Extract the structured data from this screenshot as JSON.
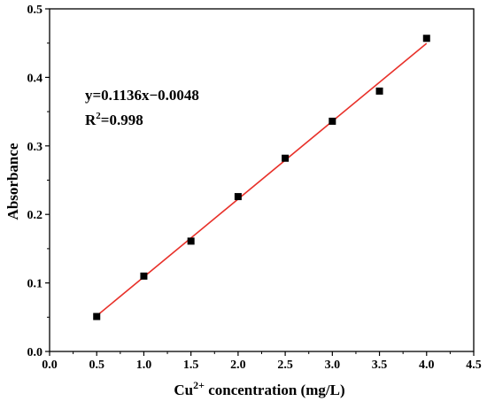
{
  "chart_data": {
    "type": "scatter",
    "xlabel": {
      "base": "Cu",
      "sup": "2+",
      "rest": " concentration (mg/L)"
    },
    "ylabel": "Absorbance",
    "xlim": [
      0.0,
      4.5
    ],
    "ylim": [
      0.0,
      0.5
    ],
    "xticks": [
      "0.0",
      "0.5",
      "1.0",
      "1.5",
      "2.0",
      "2.5",
      "3.0",
      "3.5",
      "4.0",
      "4.5"
    ],
    "yticks": [
      "0.0",
      "0.1",
      "0.2",
      "0.3",
      "0.4",
      "0.5"
    ],
    "points": [
      {
        "x": 0.5,
        "y": 0.051
      },
      {
        "x": 1.0,
        "y": 0.11
      },
      {
        "x": 1.5,
        "y": 0.161
      },
      {
        "x": 2.0,
        "y": 0.226
      },
      {
        "x": 2.5,
        "y": 0.282
      },
      {
        "x": 3.0,
        "y": 0.336
      },
      {
        "x": 3.5,
        "y": 0.38
      },
      {
        "x": 4.0,
        "y": 0.457
      }
    ],
    "fit": {
      "slope": 0.1136,
      "intercept": -0.0048,
      "x_range": [
        0.5,
        4.0
      ],
      "color": "#e8312a"
    },
    "marker_color": "#000000",
    "grid": false,
    "annotations": {
      "equation": "y=0.1136x−0.0048",
      "r2": {
        "base": "R",
        "sup": "2",
        "rest": "=0.998"
      }
    }
  }
}
